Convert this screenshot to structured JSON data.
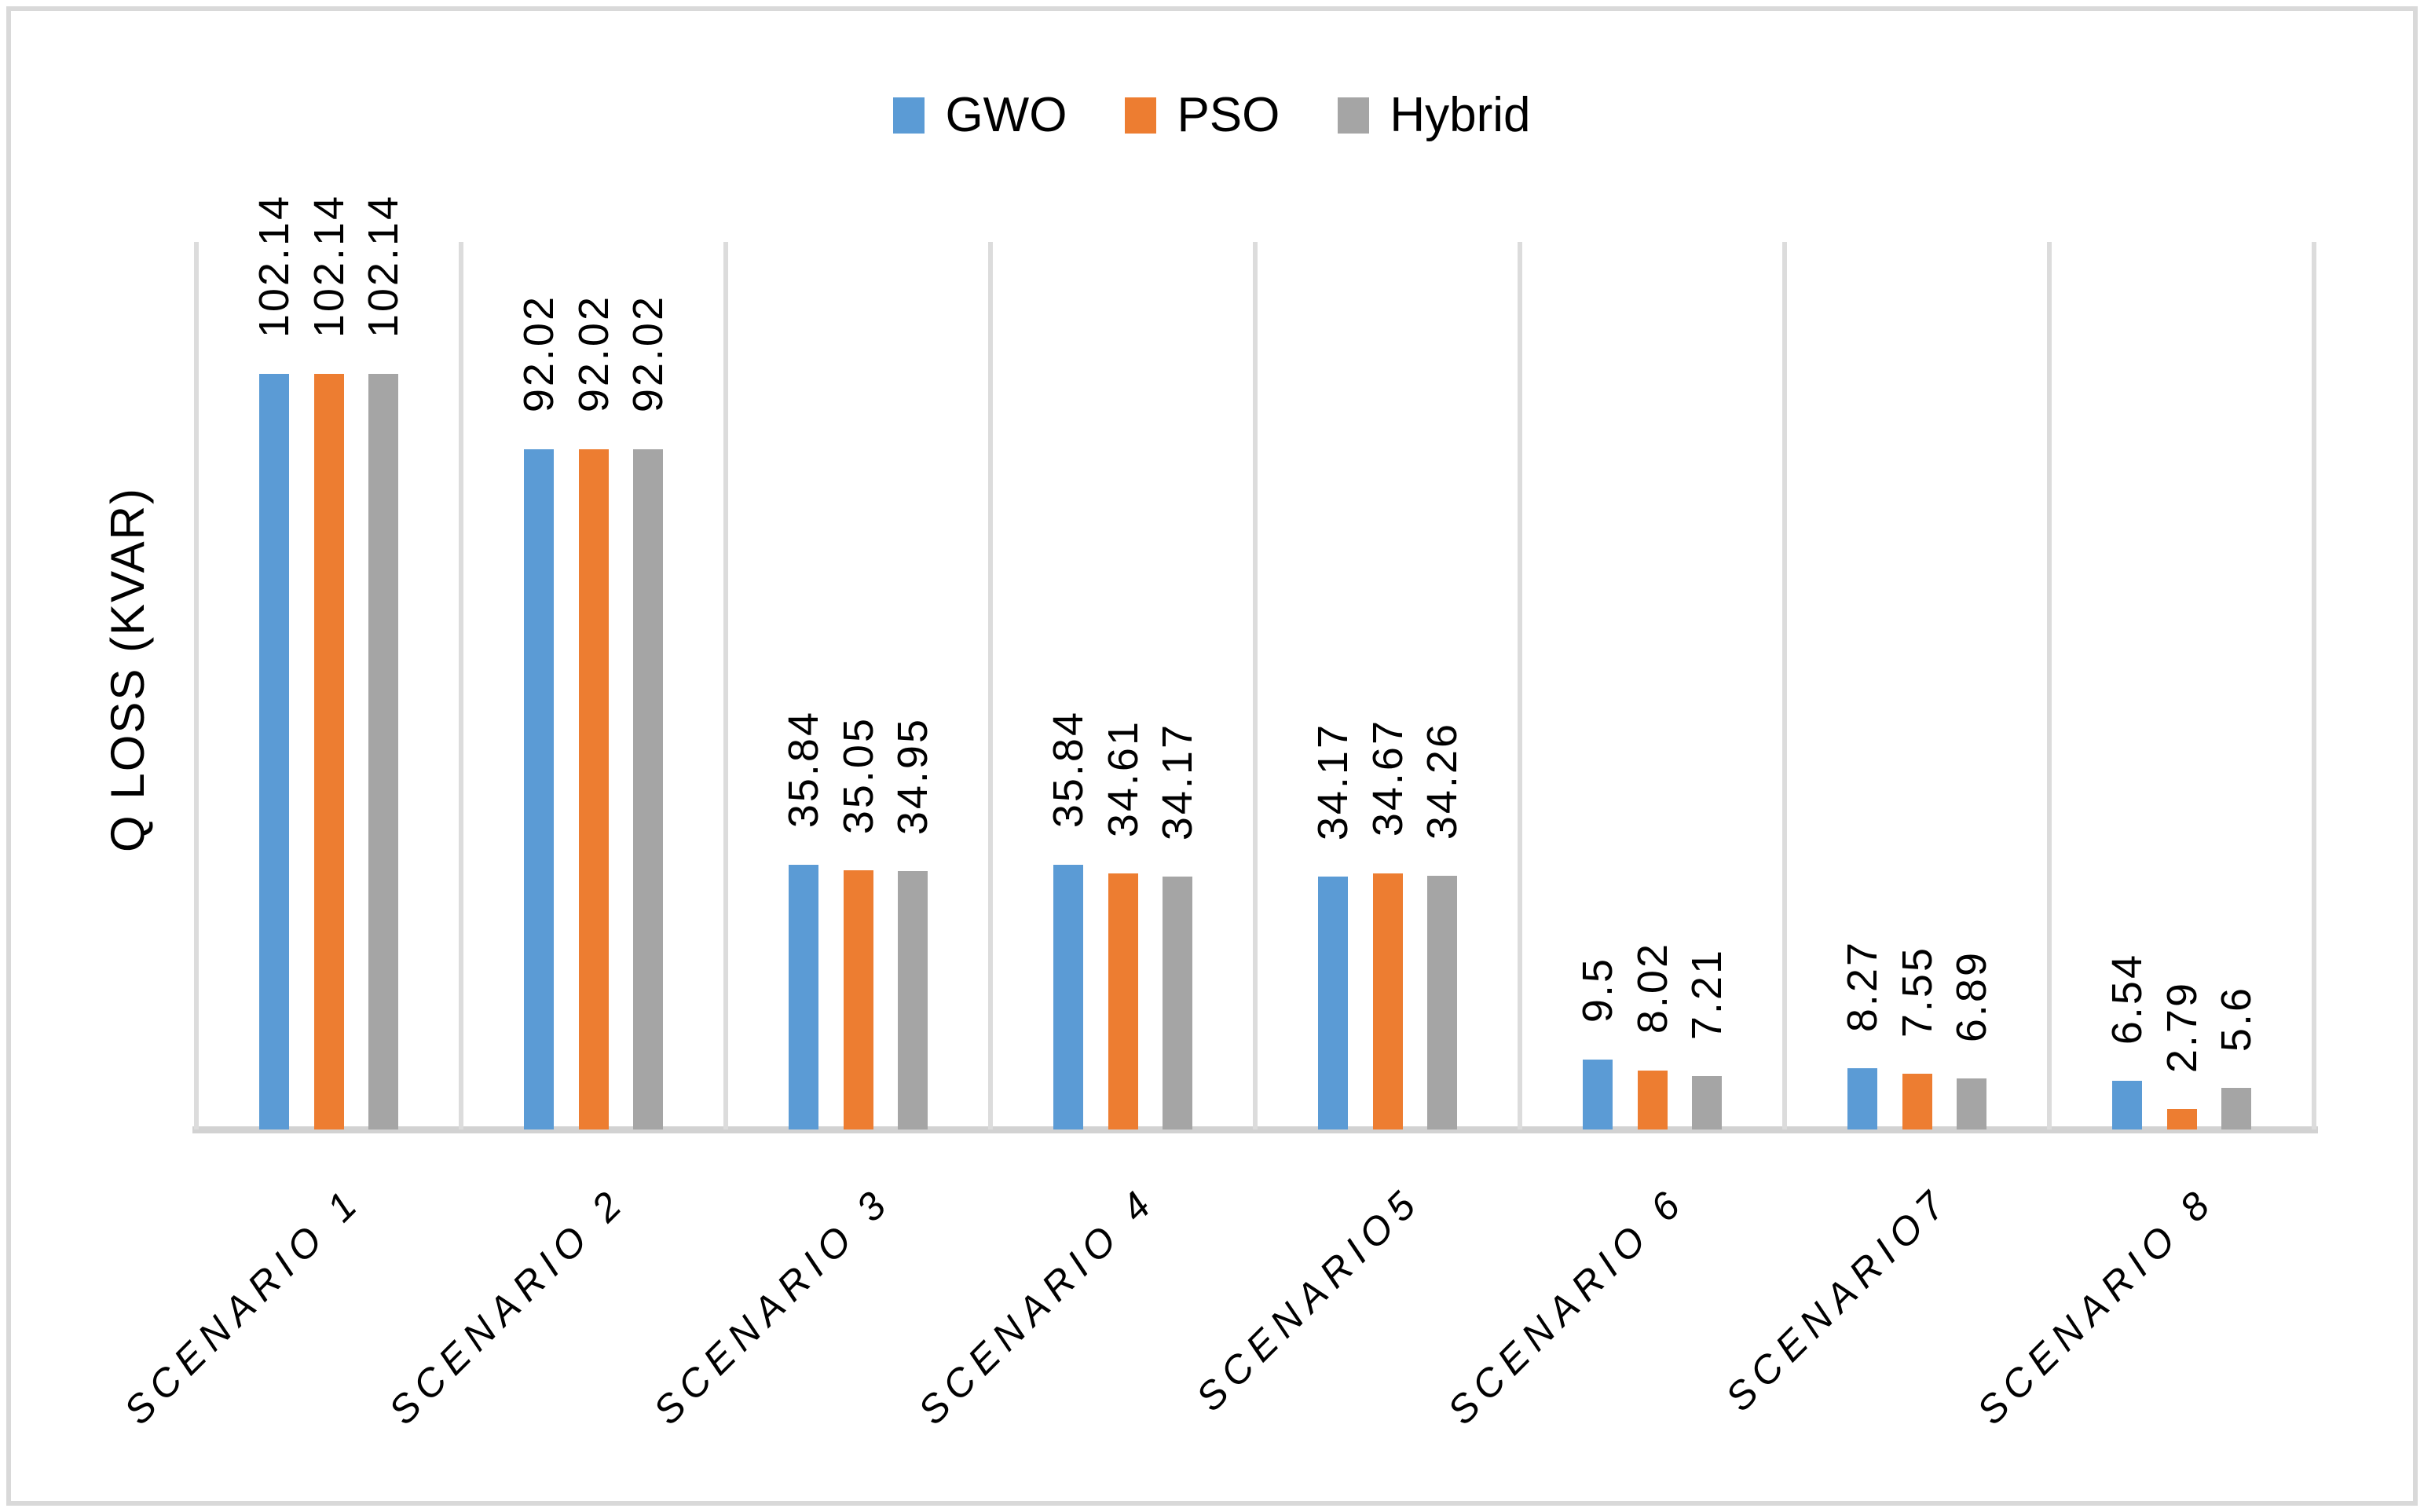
{
  "chart_data": {
    "type": "bar",
    "title": "",
    "xlabel": "",
    "ylabel": "Q LOSS (KVAR)",
    "ylim": [
      0,
      120
    ],
    "grid": "vertical category separators only, no y-axis tick labels",
    "legend_position": "top-center",
    "categories": [
      "SCENARIO 1",
      "SCENARIO 2",
      "SCENARIO 3",
      "SCENARIO 4",
      "SCENARIO5",
      "SCENARIO 6",
      "SCENARIO7",
      "SCENARIO 8"
    ],
    "series": [
      {
        "name": "GWO",
        "color": "#5B9BD5",
        "values": [
          102.14,
          92.02,
          35.84,
          35.84,
          34.17,
          9.5,
          8.27,
          6.54
        ],
        "labels": [
          "102.14",
          "92.02",
          "35.84",
          "35.84",
          "34.17",
          "9.5",
          "8.27",
          "6.54"
        ]
      },
      {
        "name": "PSO",
        "color": "#ED7D31",
        "values": [
          102.14,
          92.02,
          35.05,
          34.61,
          34.67,
          8.02,
          7.55,
          2.79
        ],
        "labels": [
          "102.14",
          "92.02",
          "35.05",
          "34.61",
          "34.67",
          "8.02",
          "7.55",
          "2.79"
        ]
      },
      {
        "name": "Hybrid",
        "color": "#A5A5A5",
        "values": [
          102.14,
          92.02,
          34.95,
          34.17,
          34.26,
          7.21,
          6.89,
          5.6
        ],
        "labels": [
          "102.14",
          "92.02",
          "34.95",
          "34.17",
          "34.26",
          "7.21",
          "6.89",
          "5.6"
        ]
      }
    ]
  },
  "colors": {
    "gridline": "#DCDCDC",
    "axis_line": "#D2D2D2",
    "frame": "#D9D9D9",
    "text": "#000000"
  }
}
